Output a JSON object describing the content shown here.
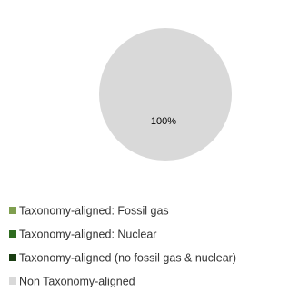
{
  "chart_data": {
    "type": "pie",
    "title": "",
    "legend_position": "bottom-left",
    "slices": [
      {
        "label": "Taxonomy-aligned: Fossil gas",
        "value": 0,
        "color": "#7f9f4f"
      },
      {
        "label": "Taxonomy-aligned: Nuclear",
        "value": 0,
        "color": "#2e6b1f"
      },
      {
        "label": "Taxonomy-aligned (no fossil gas & nuclear)",
        "value": 0,
        "color": "#1a3d12"
      },
      {
        "label": "Non Taxonomy-aligned",
        "value": 100,
        "color": "#d9d9d9"
      }
    ],
    "data_labels": [
      {
        "slice": "Non Taxonomy-aligned",
        "text": "100%"
      }
    ]
  }
}
